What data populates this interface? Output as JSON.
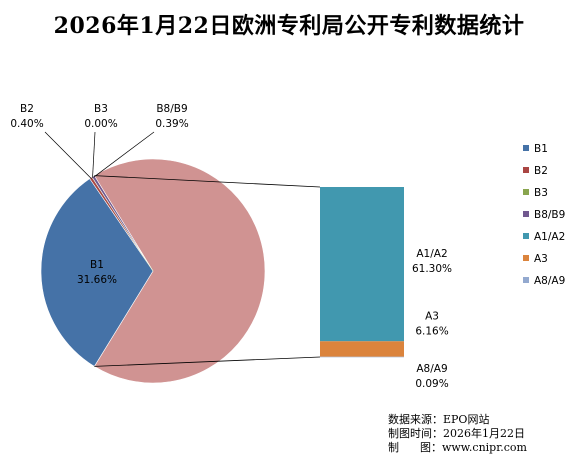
{
  "chart_data": {
    "type": "pie",
    "title": "2026年1月22日欧洲专利局公开专利数据统计",
    "pie": {
      "slices": [
        {
          "name": "B1",
          "label": "B1",
          "value": 31.66,
          "value_text": "31.66%",
          "color": "#4572a7"
        },
        {
          "name": "B2",
          "label": "B2",
          "value": 0.4,
          "value_text": "0.40%",
          "color": "#aa4643"
        },
        {
          "name": "B3",
          "label": "B3",
          "value": 0.0,
          "value_text": "0.00%",
          "color": "#89a54e"
        },
        {
          "name": "B8/B9",
          "label": "B8/B9",
          "value": 0.39,
          "value_text": "0.39%",
          "color": "#71588f"
        },
        {
          "name": "A",
          "label": "",
          "value": 67.55,
          "value_text": "",
          "color": "#d09392"
        }
      ]
    },
    "bar_of_pie": {
      "segments": [
        {
          "name": "A1/A2",
          "label": "A1/A2",
          "value": 61.3,
          "value_text": "61.30%",
          "color": "#4198af"
        },
        {
          "name": "A3",
          "label": "A3",
          "value": 6.16,
          "value_text": "6.16%",
          "color": "#db843d"
        },
        {
          "name": "A8/A9",
          "label": "A8/A9",
          "value": 0.09,
          "value_text": "0.09%",
          "color": "#93a9cf"
        }
      ]
    },
    "legend": {
      "position": "right",
      "items": [
        {
          "label": "B1",
          "color": "#4572a7"
        },
        {
          "label": "B2",
          "color": "#aa4643"
        },
        {
          "label": "B3",
          "color": "#89a54e"
        },
        {
          "label": "B8/B9",
          "color": "#71588f"
        },
        {
          "label": "A1/A2",
          "color": "#4198af"
        },
        {
          "label": "A3",
          "color": "#db843d"
        },
        {
          "label": "A8/A9",
          "color": "#93a9cf"
        }
      ]
    }
  },
  "source_text": {
    "line1": "数据来源：EPO网站",
    "line2": "制图时间：2026年1月22日",
    "line3": "制      图：www.cnipr.com"
  }
}
